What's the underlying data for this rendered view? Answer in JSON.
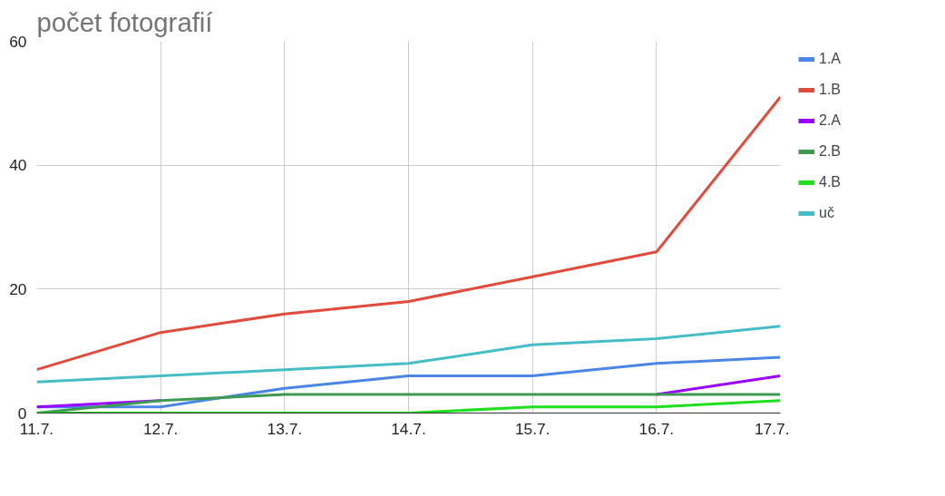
{
  "chart_data": {
    "type": "line",
    "title": "počet fotografií",
    "categories": [
      "11.7.",
      "12.7.",
      "13.7.",
      "14.7.",
      "15.7.",
      "16.7.",
      "17.7."
    ],
    "series": [
      {
        "name": "1.A",
        "color": "#4a86e8",
        "values": [
          1,
          1,
          4,
          6,
          6,
          8,
          9
        ]
      },
      {
        "name": "1.B",
        "color": "#e24a3b",
        "values": [
          7,
          13,
          16,
          18,
          22,
          26,
          51
        ]
      },
      {
        "name": "2.A",
        "color": "#9900ff",
        "values": [
          1,
          2,
          null,
          null,
          null,
          3,
          6
        ]
      },
      {
        "name": "2.B",
        "color": "#3d9a50",
        "values": [
          0,
          2,
          3,
          3,
          3,
          3,
          3
        ]
      },
      {
        "name": "4.B",
        "color": "#1ee01e",
        "values": [
          0,
          0,
          0,
          0,
          1,
          1,
          2
        ]
      },
      {
        "name": "uč",
        "color": "#46bdc6",
        "values": [
          5,
          6,
          7,
          8,
          11,
          12,
          14
        ]
      }
    ],
    "ylim": [
      0,
      60
    ],
    "yticks": [
      0,
      20,
      40,
      60
    ],
    "grid": true,
    "legend": "right",
    "marker": "none",
    "line_style": "solid"
  }
}
